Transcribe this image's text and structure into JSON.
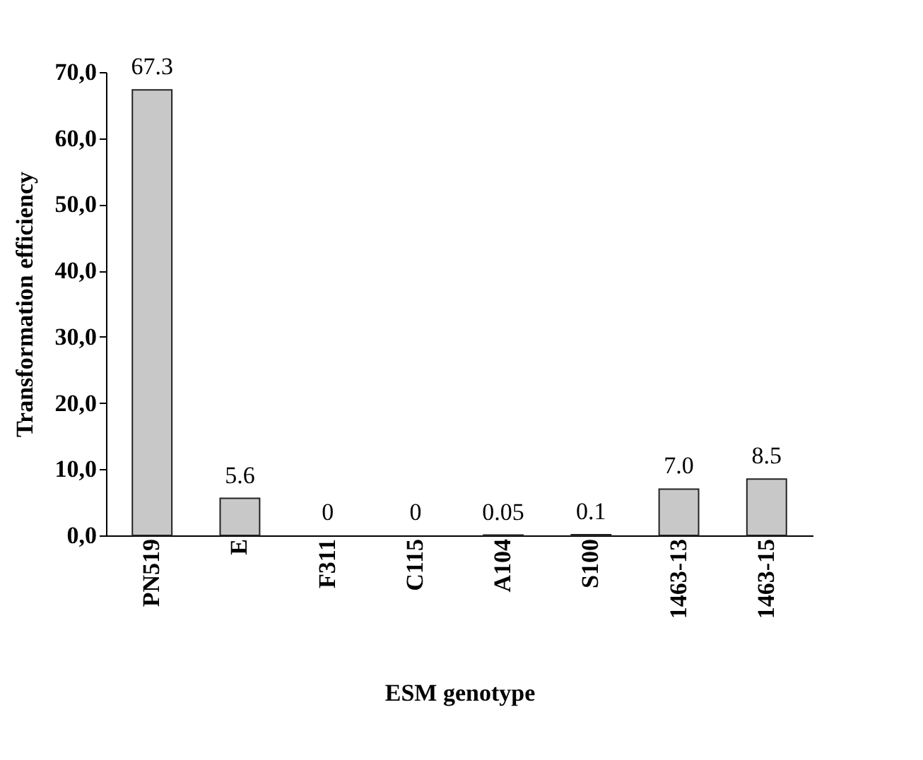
{
  "chart_data": {
    "type": "bar",
    "xlabel": "ESM genotype",
    "ylabel": "Transformation efficiency",
    "categories": [
      "PN519",
      "E",
      "F311",
      "C115",
      "A104",
      "S100",
      "1463-13",
      "1463-15"
    ],
    "values": [
      67.3,
      5.6,
      0,
      0,
      0.05,
      0.1,
      7.0,
      8.5
    ],
    "value_labels": [
      "67.3",
      "5.6",
      "0",
      "0",
      "0.05",
      "0.1",
      "7.0",
      "8.5"
    ],
    "color": "#c8c8c8",
    "ylim": [
      0,
      70
    ],
    "yticks": [
      {
        "value": 0,
        "label": "0,0"
      },
      {
        "value": 10,
        "label": "10,0"
      },
      {
        "value": 20,
        "label": "20,0"
      },
      {
        "value": 30,
        "label": "30,0"
      },
      {
        "value": 40,
        "label": "40,0"
      },
      {
        "value": 50,
        "label": "50,0"
      },
      {
        "value": 60,
        "label": "60,0"
      },
      {
        "value": 70,
        "label": "70,0"
      }
    ],
    "grid": false
  }
}
